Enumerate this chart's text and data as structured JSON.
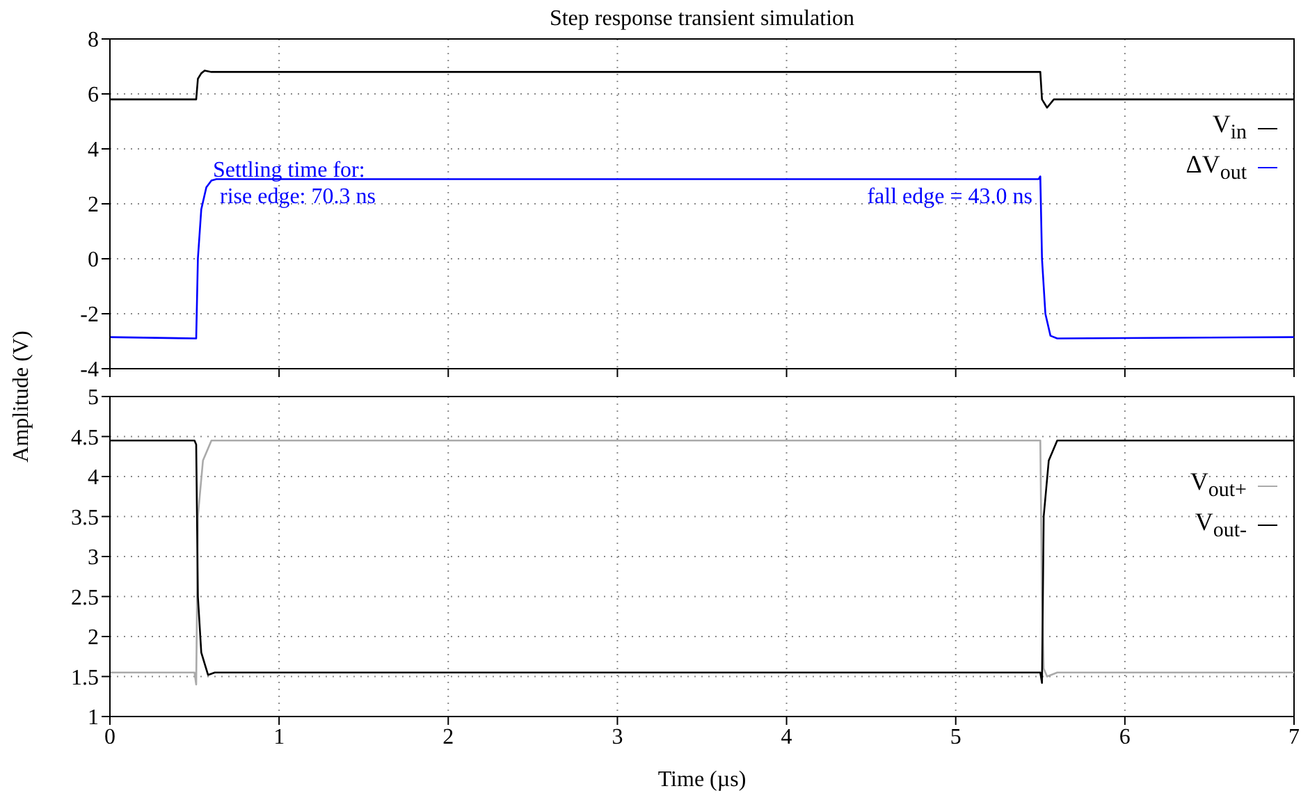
{
  "chart_data": [
    {
      "type": "line",
      "title": "Step response transient simulation",
      "ylabel": "Amplitude (V)",
      "xlim": [
        0,
        7
      ],
      "xticks": [
        0,
        1,
        2,
        3,
        4,
        5,
        6,
        7
      ],
      "ylim": [
        -4,
        8
      ],
      "yticks": [
        -4,
        -2,
        0,
        2,
        4,
        6,
        8
      ],
      "tick_labels": "y",
      "grid": true,
      "legend": "top right",
      "marker": "none",
      "line_style": "solid",
      "series": [
        {
          "name": "V$_{in}$",
          "color": "#000000",
          "x": [
            0,
            0.51,
            0.52,
            0.54,
            0.56,
            0.6,
            5.5,
            5.51,
            5.54,
            5.58,
            7
          ],
          "values": [
            5.8,
            5.8,
            6.55,
            6.75,
            6.85,
            6.8,
            6.8,
            5.8,
            5.5,
            5.8,
            5.8
          ]
        },
        {
          "name": "ΔV$_{out}$",
          "color": "#0000ff",
          "x": [
            0,
            0.51,
            0.52,
            0.54,
            0.57,
            0.6,
            0.63,
            5.49,
            5.5,
            5.51,
            5.53,
            5.56,
            5.6,
            7
          ],
          "values": [
            -2.85,
            -2.9,
            0,
            1.8,
            2.6,
            2.85,
            2.9,
            2.9,
            3.0,
            0,
            -2.0,
            -2.8,
            -2.9,
            -2.85
          ]
        }
      ],
      "annotations": [
        "Settling time for:",
        "rise edge: 70.3 ns",
        "fall edge = 43.0 ns"
      ]
    },
    {
      "type": "line",
      "xlabel": "Time (µs)",
      "xlim": [
        0,
        7
      ],
      "xticks": [
        0,
        1,
        2,
        3,
        4,
        5,
        6,
        7
      ],
      "ylim": [
        1,
        5
      ],
      "yticks": [
        1,
        1.5,
        2,
        2.5,
        3,
        3.5,
        4,
        4.5,
        5
      ],
      "grid": true,
      "legend": "top right",
      "marker": "none",
      "line_style": "solid",
      "series": [
        {
          "name": "V$_{out+}$",
          "color": "#aaaaaa",
          "x": [
            0,
            0.5,
            0.51,
            0.52,
            0.55,
            0.6,
            5.5,
            5.51,
            5.52,
            5.54,
            5.6,
            7
          ],
          "values": [
            1.55,
            1.55,
            1.4,
            3.5,
            4.2,
            4.45,
            4.45,
            2.5,
            1.6,
            1.5,
            1.55,
            1.55
          ]
        },
        {
          "name": "V$_{out-}$",
          "color": "#000000",
          "x": [
            0,
            0.5,
            0.51,
            0.52,
            0.54,
            0.58,
            0.62,
            5.5,
            5.51,
            5.52,
            5.55,
            5.6,
            7
          ],
          "values": [
            4.45,
            4.45,
            4.4,
            2.5,
            1.8,
            1.52,
            1.55,
            1.55,
            1.42,
            3.5,
            4.2,
            4.45,
            4.45
          ]
        }
      ]
    }
  ]
}
